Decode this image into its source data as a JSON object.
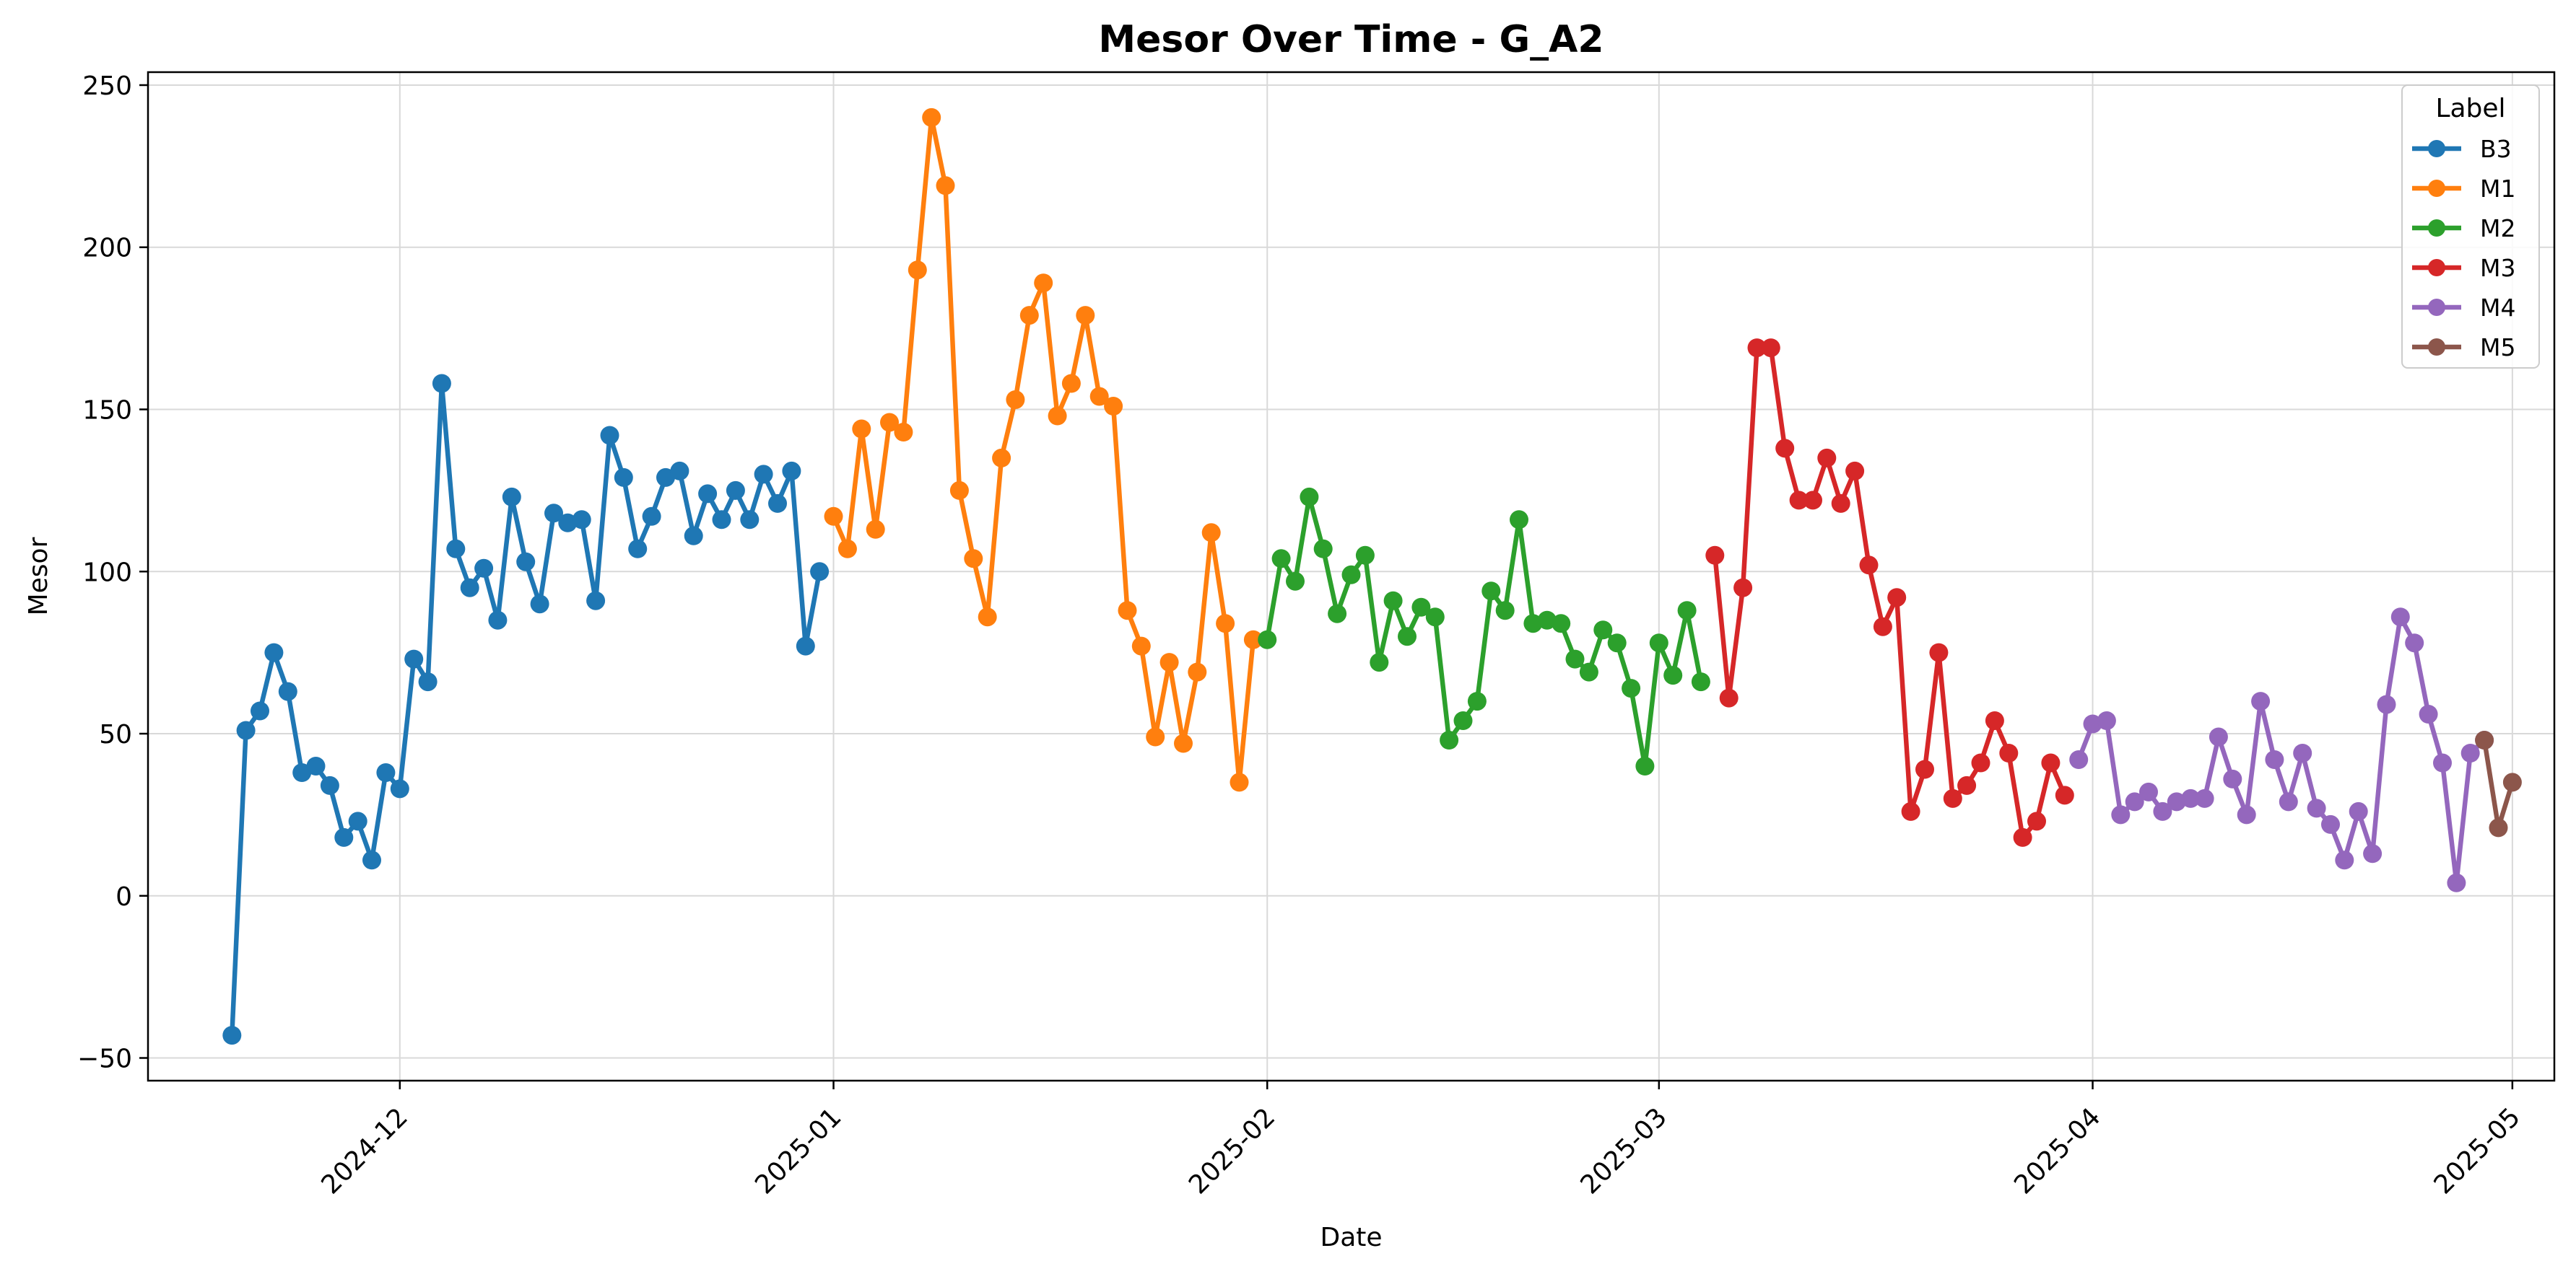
{
  "chart_data": {
    "type": "line",
    "title": "Mesor Over Time - G_A2",
    "xlabel": "Date",
    "ylabel": "Mesor",
    "x_type": "date",
    "xlim": [
      "2024-11-13",
      "2025-05-04"
    ],
    "ylim": [
      -57,
      254
    ],
    "x_ticks": [
      "2024-12-01",
      "2025-01-01",
      "2025-02-01",
      "2025-03-01",
      "2025-04-01",
      "2025-05-01"
    ],
    "x_tick_labels": [
      "2024-12",
      "2025-01",
      "2025-02",
      "2025-03",
      "2025-04",
      "2025-05"
    ],
    "y_ticks": [
      -50,
      0,
      50,
      100,
      150,
      200,
      250
    ],
    "y_tick_labels": [
      "−50",
      "0",
      "50",
      "100",
      "150",
      "200",
      "250"
    ],
    "grid": true,
    "legend": {
      "title": "Label",
      "placement": "top-right"
    },
    "series": [
      {
        "name": "B3",
        "color": "#1f77b4",
        "x": [
          "2024-11-19",
          "2024-11-20",
          "2024-11-21",
          "2024-11-22",
          "2024-11-23",
          "2024-11-24",
          "2024-11-25",
          "2024-11-26",
          "2024-11-27",
          "2024-11-28",
          "2024-11-29",
          "2024-11-30",
          "2024-12-01",
          "2024-12-02",
          "2024-12-03",
          "2024-12-04",
          "2024-12-05",
          "2024-12-06",
          "2024-12-07",
          "2024-12-08",
          "2024-12-09",
          "2024-12-10",
          "2024-12-11",
          "2024-12-12",
          "2024-12-13",
          "2024-12-14",
          "2024-12-15",
          "2024-12-16",
          "2024-12-17",
          "2024-12-18",
          "2024-12-19",
          "2024-12-20",
          "2024-12-21",
          "2024-12-22",
          "2024-12-23",
          "2024-12-24",
          "2024-12-25",
          "2024-12-26",
          "2024-12-27",
          "2024-12-28",
          "2024-12-29",
          "2024-12-30",
          "2024-12-31"
        ],
        "y": [
          -43,
          51,
          57,
          75,
          63,
          38,
          40,
          34,
          18,
          23,
          11,
          38,
          33,
          73,
          66,
          158,
          107,
          95,
          101,
          85,
          123,
          103,
          90,
          118,
          115,
          116,
          91,
          142,
          129,
          107,
          117,
          129,
          131,
          111,
          124,
          116,
          125,
          116,
          130,
          121,
          131,
          77,
          100
        ]
      },
      {
        "name": "M1",
        "color": "#ff7f0e",
        "x": [
          "2025-01-01",
          "2025-01-02",
          "2025-01-03",
          "2025-01-04",
          "2025-01-05",
          "2025-01-06",
          "2025-01-07",
          "2025-01-08",
          "2025-01-09",
          "2025-01-10",
          "2025-01-11",
          "2025-01-12",
          "2025-01-13",
          "2025-01-14",
          "2025-01-15",
          "2025-01-16",
          "2025-01-17",
          "2025-01-18",
          "2025-01-19",
          "2025-01-20",
          "2025-01-21",
          "2025-01-22",
          "2025-01-23",
          "2025-01-24",
          "2025-01-25",
          "2025-01-26",
          "2025-01-27",
          "2025-01-28",
          "2025-01-29",
          "2025-01-30",
          "2025-01-31"
        ],
        "y": [
          117,
          107,
          144,
          113,
          146,
          143,
          193,
          240,
          219,
          125,
          104,
          86,
          135,
          153,
          179,
          189,
          148,
          158,
          179,
          154,
          151,
          88,
          77,
          49,
          72,
          47,
          69,
          112,
          84,
          35,
          79
        ]
      },
      {
        "name": "M2",
        "color": "#2ca02c",
        "x": [
          "2025-02-01",
          "2025-02-02",
          "2025-02-03",
          "2025-02-04",
          "2025-02-05",
          "2025-02-06",
          "2025-02-07",
          "2025-02-08",
          "2025-02-09",
          "2025-02-10",
          "2025-02-11",
          "2025-02-12",
          "2025-02-13",
          "2025-02-14",
          "2025-02-15",
          "2025-02-16",
          "2025-02-17",
          "2025-02-18",
          "2025-02-19",
          "2025-02-20",
          "2025-02-21",
          "2025-02-22",
          "2025-02-23",
          "2025-02-24",
          "2025-02-25",
          "2025-02-26",
          "2025-02-27",
          "2025-02-28",
          "2025-03-01",
          "2025-03-02",
          "2025-03-03",
          "2025-03-04"
        ],
        "y": [
          79,
          104,
          97,
          123,
          107,
          87,
          99,
          105,
          72,
          91,
          80,
          89,
          86,
          48,
          54,
          60,
          94,
          88,
          116,
          84,
          85,
          84,
          73,
          69,
          82,
          78,
          64,
          40,
          78,
          68,
          88,
          66
        ]
      },
      {
        "name": "M3",
        "color": "#d62728",
        "x": [
          "2025-03-05",
          "2025-03-06",
          "2025-03-07",
          "2025-03-08",
          "2025-03-09",
          "2025-03-10",
          "2025-03-11",
          "2025-03-12",
          "2025-03-13",
          "2025-03-14",
          "2025-03-15",
          "2025-03-16",
          "2025-03-17",
          "2025-03-18",
          "2025-03-19",
          "2025-03-20",
          "2025-03-21",
          "2025-03-22",
          "2025-03-23",
          "2025-03-24",
          "2025-03-25",
          "2025-03-26",
          "2025-03-27",
          "2025-03-28",
          "2025-03-29",
          "2025-03-30"
        ],
        "y": [
          105,
          61,
          95,
          169,
          169,
          138,
          122,
          122,
          135,
          121,
          131,
          102,
          83,
          92,
          26,
          39,
          75,
          30,
          34,
          41,
          54,
          44,
          18,
          23,
          41,
          31
        ]
      },
      {
        "name": "M4",
        "color": "#9467bd",
        "x": [
          "2025-03-31",
          "2025-04-01",
          "2025-04-02",
          "2025-04-03",
          "2025-04-04",
          "2025-04-05",
          "2025-04-06",
          "2025-04-07",
          "2025-04-08",
          "2025-04-09",
          "2025-04-10",
          "2025-04-11",
          "2025-04-12",
          "2025-04-13",
          "2025-04-14",
          "2025-04-15",
          "2025-04-16",
          "2025-04-17",
          "2025-04-18",
          "2025-04-19",
          "2025-04-20",
          "2025-04-21",
          "2025-04-22",
          "2025-04-23",
          "2025-04-24",
          "2025-04-25",
          "2025-04-26",
          "2025-04-27",
          "2025-04-28",
          "2025-04-29"
        ],
        "y": [
          42,
          53,
          54,
          25,
          29,
          32,
          26,
          29,
          30,
          30,
          49,
          36,
          25,
          60,
          42,
          29,
          44,
          27,
          22,
          11,
          26,
          13,
          59,
          86,
          78,
          56,
          41,
          4,
          44,
          48
        ]
      },
      {
        "name": "M5",
        "color": "#8c564b",
        "x": [
          "2025-04-29",
          "2025-04-30",
          "2025-05-01"
        ],
        "y": [
          48,
          21,
          35
        ]
      }
    ]
  }
}
